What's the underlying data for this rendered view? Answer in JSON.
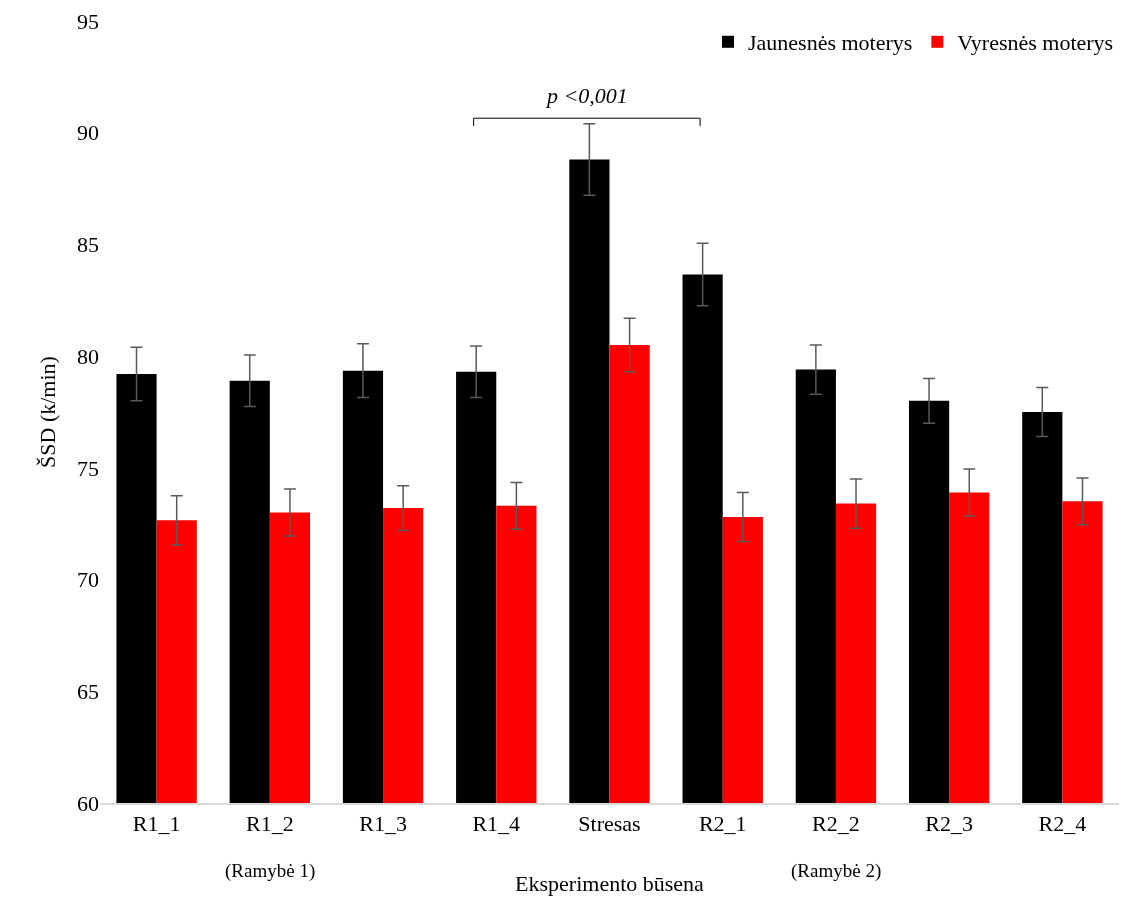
{
  "chart_data": {
    "type": "bar",
    "xlabel": "Eksperimento būsena",
    "ylabel": "ŠSD (k/min)",
    "categories": [
      "R1_1",
      "R1_2",
      "R1_3",
      "R1_4",
      "Stresas",
      "R2_1",
      "R2_2",
      "R2_3",
      "R2_4"
    ],
    "series": [
      {
        "name": "Jaunesnės moterys",
        "color": "#000000",
        "values": [
          79.2,
          78.9,
          79.35,
          79.3,
          88.8,
          83.65,
          79.4,
          78.0,
          77.5
        ],
        "errors": [
          1.2,
          1.15,
          1.2,
          1.15,
          1.6,
          1.4,
          1.1,
          1.0,
          1.1
        ]
      },
      {
        "name": "Vyresnės moterys",
        "color": "#ff0000",
        "values": [
          72.65,
          73.0,
          73.2,
          73.3,
          80.5,
          72.8,
          73.4,
          73.9,
          73.5
        ],
        "errors": [
          1.1,
          1.05,
          1.0,
          1.05,
          1.2,
          1.1,
          1.1,
          1.05,
          1.05
        ]
      }
    ],
    "ylim": [
      60,
      95
    ],
    "yticks": [
      60,
      65,
      70,
      75,
      80,
      85,
      90,
      95
    ],
    "grid": false,
    "legend": "top right",
    "annotations": [
      "p <0,001",
      {
        "text": "(Ramybė 1)",
        "x": "R1_2"
      },
      {
        "text": "(Ramybė 2)",
        "x": "R2_2"
      }
    ]
  }
}
